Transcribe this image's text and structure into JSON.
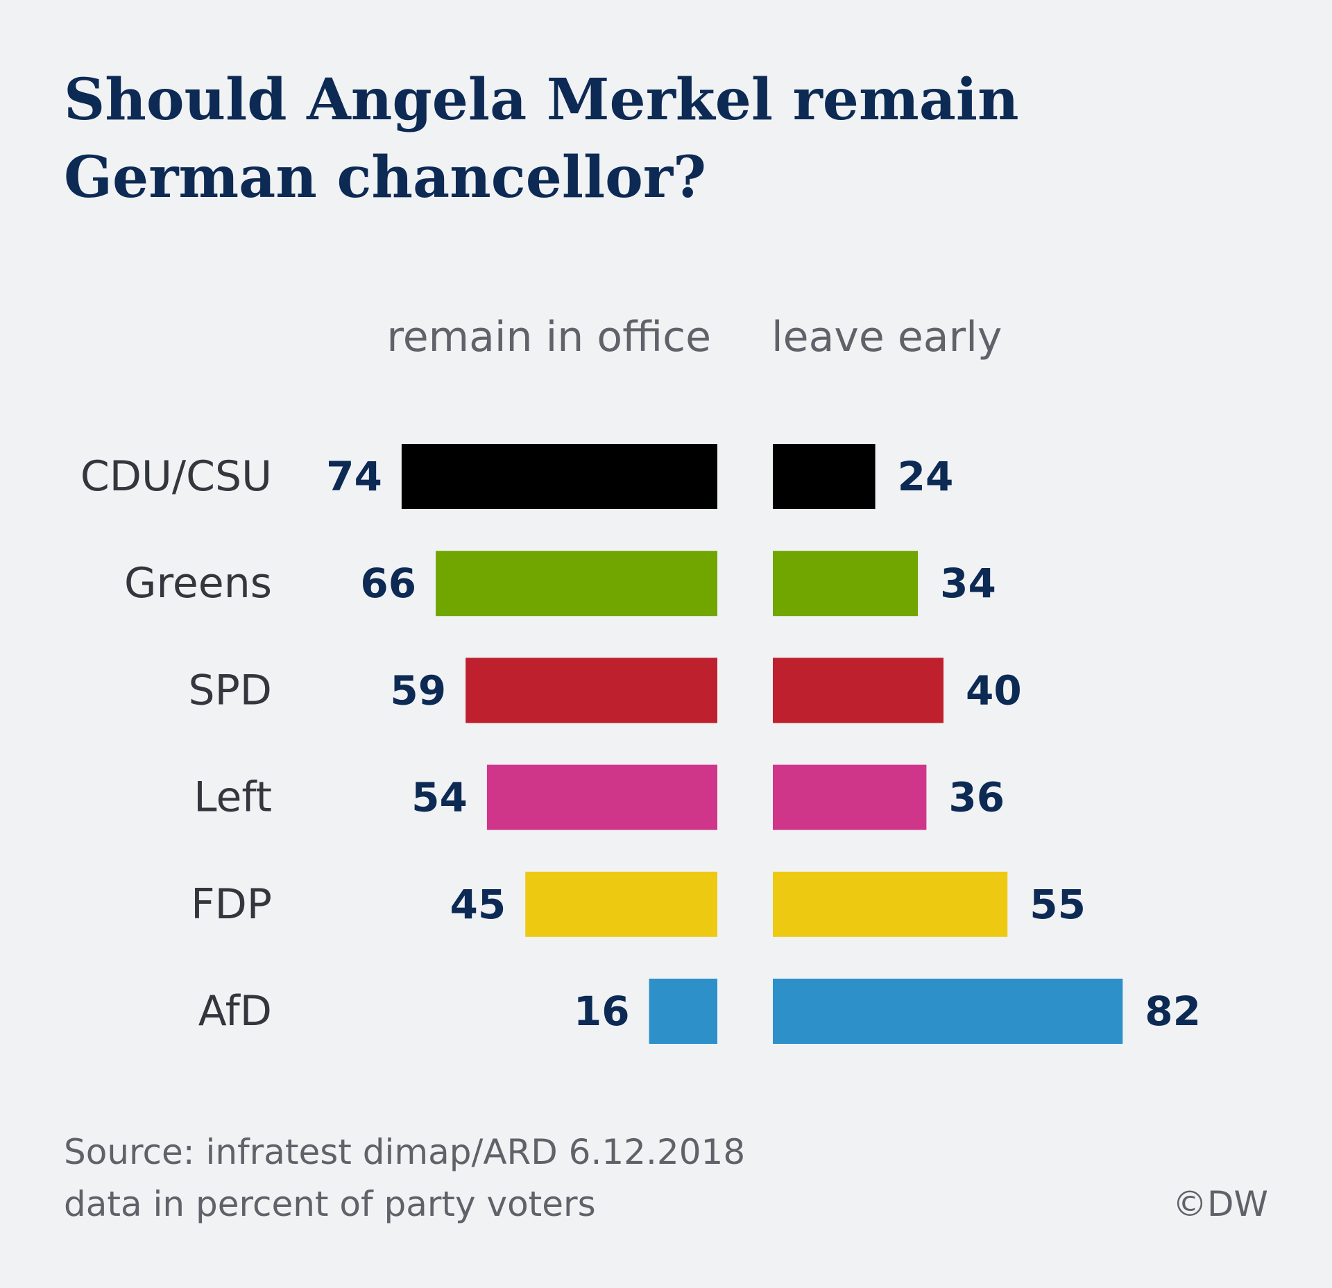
{
  "title_lines": [
    "Should Angela Merkel remain",
    "German chancellor?"
  ],
  "footer": {
    "source": "Source: infratest dimap/ARD 6.12.2018",
    "note": "data in percent of party voters",
    "credit": "©DW"
  },
  "chart_data": {
    "type": "bar",
    "orientation": "horizontal",
    "layout": "butterfly",
    "title": "Should Angela Merkel remain German chancellor?",
    "categories": [
      "CDU/CSU",
      "Greens",
      "SPD",
      "Left",
      "FDP",
      "AfD"
    ],
    "colors": [
      "#000000",
      "#71a500",
      "#be202d",
      "#cf368a",
      "#eec912",
      "#2d90c9"
    ],
    "series": [
      {
        "name": "remain in office",
        "values": [
          74,
          66,
          59,
          54,
          45,
          16
        ],
        "direction": "left"
      },
      {
        "name": "leave early",
        "values": [
          24,
          34,
          40,
          36,
          55,
          82
        ],
        "direction": "right"
      }
    ],
    "unit": "percent of party voters",
    "grid": false,
    "axes_visible": false
  }
}
